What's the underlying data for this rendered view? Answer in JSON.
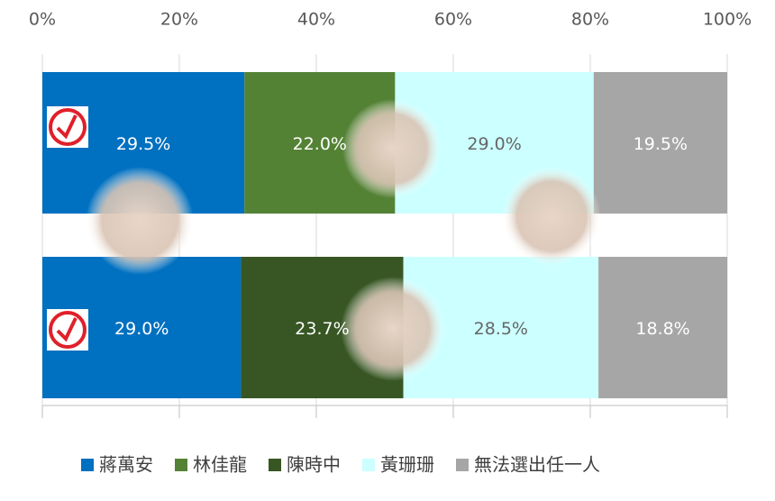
{
  "chart_data": {
    "type": "stacked-bar-horizontal",
    "categories": [
      null,
      null
    ],
    "xlim": [
      0,
      100
    ],
    "xticks": [
      {
        "value": 0,
        "label": "0%"
      },
      {
        "value": 20,
        "label": "20%"
      },
      {
        "value": 40,
        "label": "40%"
      },
      {
        "value": 60,
        "label": "60%"
      },
      {
        "value": 80,
        "label": "80%"
      },
      {
        "value": 100,
        "label": "100%"
      }
    ],
    "grid": true,
    "legend": "bottom",
    "series": [
      {
        "name": "蔣萬安",
        "color": "#0070c0",
        "values": [
          29.5,
          29.0
        ],
        "value_labels": [
          "29.5%",
          "29.0%"
        ]
      },
      {
        "name": "林佳龍",
        "color": "#548235",
        "values": [
          22.0,
          null
        ],
        "value_labels": [
          "22.0%",
          null
        ]
      },
      {
        "name": "陳時中",
        "color": "#375623",
        "values": [
          null,
          23.7
        ],
        "value_labels": [
          null,
          "23.7%"
        ]
      },
      {
        "name": "黃珊珊",
        "color": "#ccffff",
        "values": [
          29.0,
          28.5
        ],
        "value_labels": [
          "29.0%",
          "28.5%"
        ]
      },
      {
        "name": "無法選出任一人",
        "color": "#a6a6a6",
        "values": [
          19.5,
          18.8
        ],
        "value_labels": [
          "19.5%",
          "18.8%"
        ]
      }
    ]
  }
}
